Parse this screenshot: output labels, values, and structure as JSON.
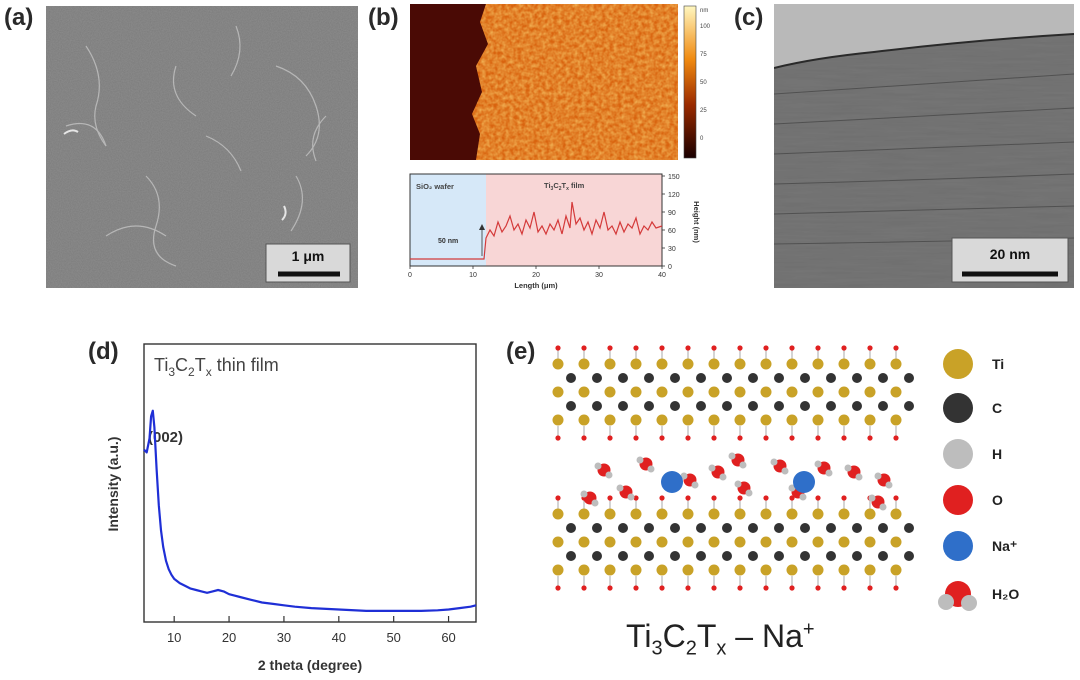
{
  "panel_labels": {
    "a": "(a)",
    "b": "(b)",
    "c": "(c)",
    "d": "(d)",
    "e": "(e)"
  },
  "panel_a": {
    "scalebar": "1 μm"
  },
  "panel_b": {
    "colorbar_unit": "nm",
    "colorbar_ticks": [
      "100",
      "75",
      "50",
      "25",
      "0"
    ],
    "profile": {
      "region_left": "SiO₂ wafer",
      "region_right_parts": [
        "Ti",
        "3",
        "C",
        "2",
        "T",
        "x",
        " film"
      ],
      "step_label": "50 nm",
      "xlabel": "Length (μm)",
      "ylabel": "Height (nm)",
      "xticks": [
        "0",
        "10",
        "20",
        "30",
        "40"
      ],
      "yticks": [
        "150",
        "120",
        "90",
        "60",
        "30",
        "0"
      ]
    }
  },
  "panel_c": {
    "scalebar": "20 nm"
  },
  "panel_e": {
    "legend": [
      {
        "label": "Ti",
        "color": "#c9a227"
      },
      {
        "label": "C",
        "color": "#333333"
      },
      {
        "label": "H",
        "color": "#bdbdbd"
      },
      {
        "label": "O",
        "color": "#e02020"
      },
      {
        "label": "Na⁺",
        "color": "#2f6fc9"
      },
      {
        "label": "H₂O",
        "color": "#e02020"
      }
    ],
    "formula_parts": [
      "Ti",
      "3",
      "C",
      "2",
      "T",
      "x",
      " – Na",
      "+"
    ]
  },
  "chart_data": {
    "type": "line",
    "title_parts": [
      "Ti",
      "3",
      "C",
      "2",
      "T",
      "x",
      " thin film"
    ],
    "xlabel": "2 theta (degree)",
    "ylabel": "Intensity (a.u.)",
    "xlim": [
      4.5,
      65
    ],
    "ylim": [
      0,
      1
    ],
    "xticks": [
      10,
      20,
      30,
      40,
      50,
      60
    ],
    "peak_annotation": "(002)",
    "series": [
      {
        "color": "#1f2fd6",
        "x": [
          4.5,
          5.0,
          5.5,
          5.8,
          6.1,
          6.4,
          6.8,
          7.2,
          7.6,
          8.0,
          8.5,
          9.0,
          9.5,
          10.0,
          11.0,
          12.0,
          13.0,
          14.0,
          15.0,
          16.0,
          17.0,
          18.0,
          19.0,
          20.0,
          21.0,
          22.0,
          24.0,
          26.0,
          28.0,
          30.0,
          32.0,
          35.0,
          40.0,
          45.0,
          50.0,
          55.0,
          58.0,
          60.0,
          62.0,
          64.0,
          65.0
        ],
        "y": [
          0.62,
          0.61,
          0.66,
          0.74,
          0.76,
          0.7,
          0.55,
          0.42,
          0.33,
          0.27,
          0.22,
          0.19,
          0.17,
          0.155,
          0.14,
          0.13,
          0.12,
          0.115,
          0.11,
          0.105,
          0.11,
          0.115,
          0.11,
          0.1,
          0.095,
          0.09,
          0.08,
          0.07,
          0.065,
          0.06,
          0.055,
          0.05,
          0.045,
          0.04,
          0.04,
          0.04,
          0.042,
          0.045,
          0.05,
          0.055,
          0.06
        ]
      }
    ]
  }
}
